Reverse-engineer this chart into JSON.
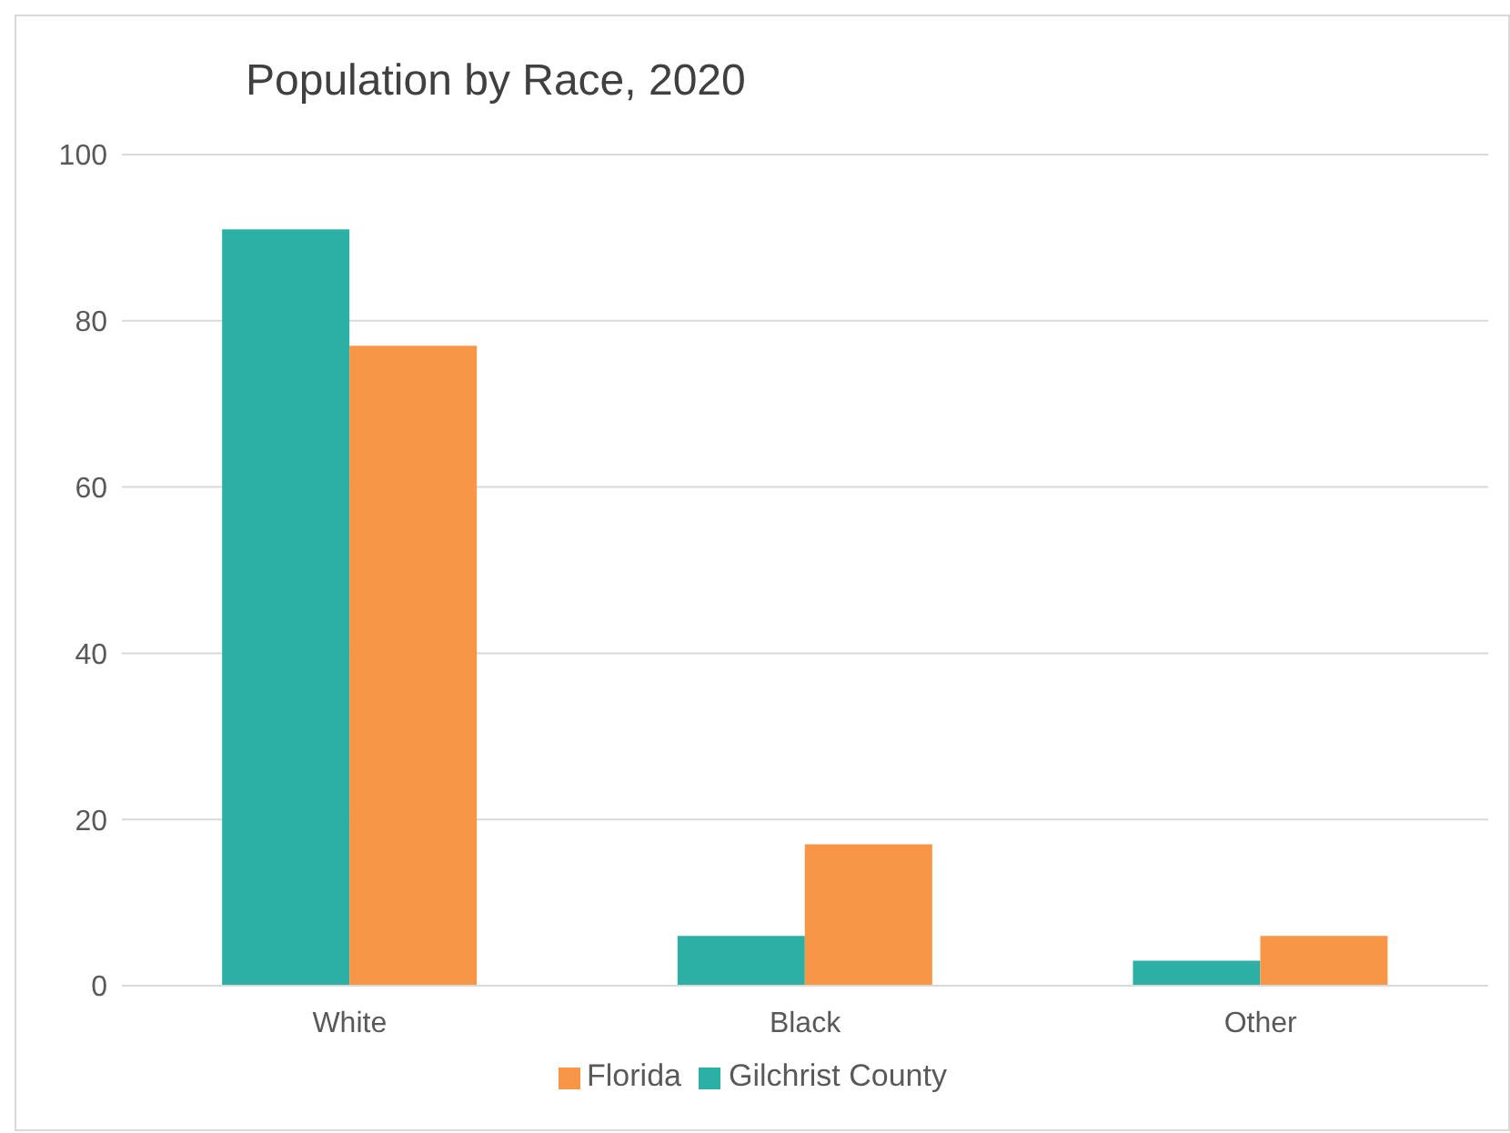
{
  "chart_data": {
    "type": "bar",
    "title": "Population by Race, 2020",
    "categories": [
      "White",
      "Black",
      "Other"
    ],
    "series": [
      {
        "name": "Gilchrist County",
        "color": "#2cb0a5",
        "values": [
          91,
          6,
          3
        ]
      },
      {
        "name": "Florida",
        "color": "#f79646",
        "values": [
          77,
          17,
          6
        ]
      }
    ],
    "ylim": [
      0,
      100
    ],
    "yticks": [
      0,
      20,
      40,
      60,
      80,
      100
    ],
    "grid": "y",
    "legend": "bottom"
  }
}
